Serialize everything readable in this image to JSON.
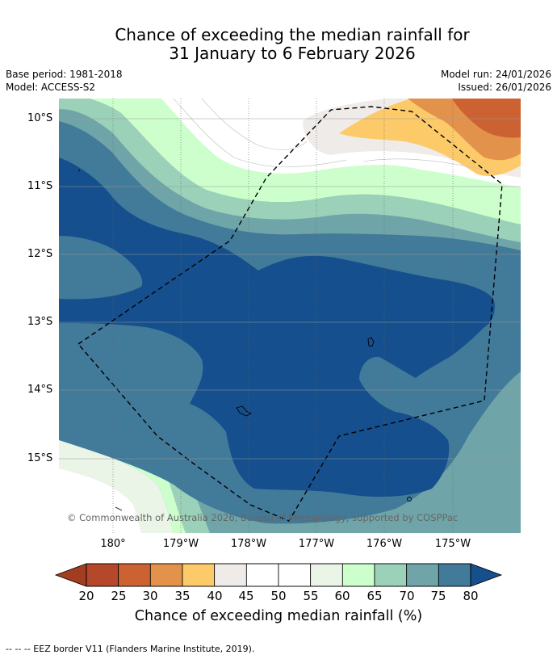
{
  "title": {
    "line1": "Chance of exceeding the median rainfall for",
    "line2": "31 January to 6 February 2026"
  },
  "meta": {
    "base_period": "Base period: 1981-2018",
    "model": "Model: ACCESS-S2",
    "model_run": "Model run: 24/01/2026",
    "issued": "Issued: 26/01/2026"
  },
  "map": {
    "lat_labels": [
      "10°S",
      "11°S",
      "12°S",
      "13°S",
      "14°S",
      "15°S"
    ],
    "lon_labels": [
      "180°",
      "179°W",
      "178°W",
      "177°W",
      "176°W",
      "175°W"
    ],
    "copyright": "© Commonwealth of Australia 2026, Bureau of Meteorology, supported by COSPPac"
  },
  "colorbar": {
    "ticks": [
      "20",
      "25",
      "30",
      "35",
      "40",
      "45",
      "50",
      "55",
      "60",
      "65",
      "70",
      "75",
      "80"
    ],
    "colors": {
      "under": "#a33d1f",
      "c20": "#b5482a",
      "c25": "#cc6232",
      "c30": "#e3924b",
      "c35": "#fdca6a",
      "c40": "#efebe8",
      "c45": "#ffffff",
      "c50": "#ffffff",
      "c55": "#eaf5e8",
      "c60": "#ccffcc",
      "c65": "#9bd1b8",
      "c70": "#6fa5a8",
      "c75": "#427a9a",
      "over": "#154f8d"
    },
    "label": "Chance of exceeding median rainfall (%)"
  },
  "legend": {
    "eez": "--  --  -- EEZ border V11 (Flanders Marine Institute, 2019)."
  }
}
